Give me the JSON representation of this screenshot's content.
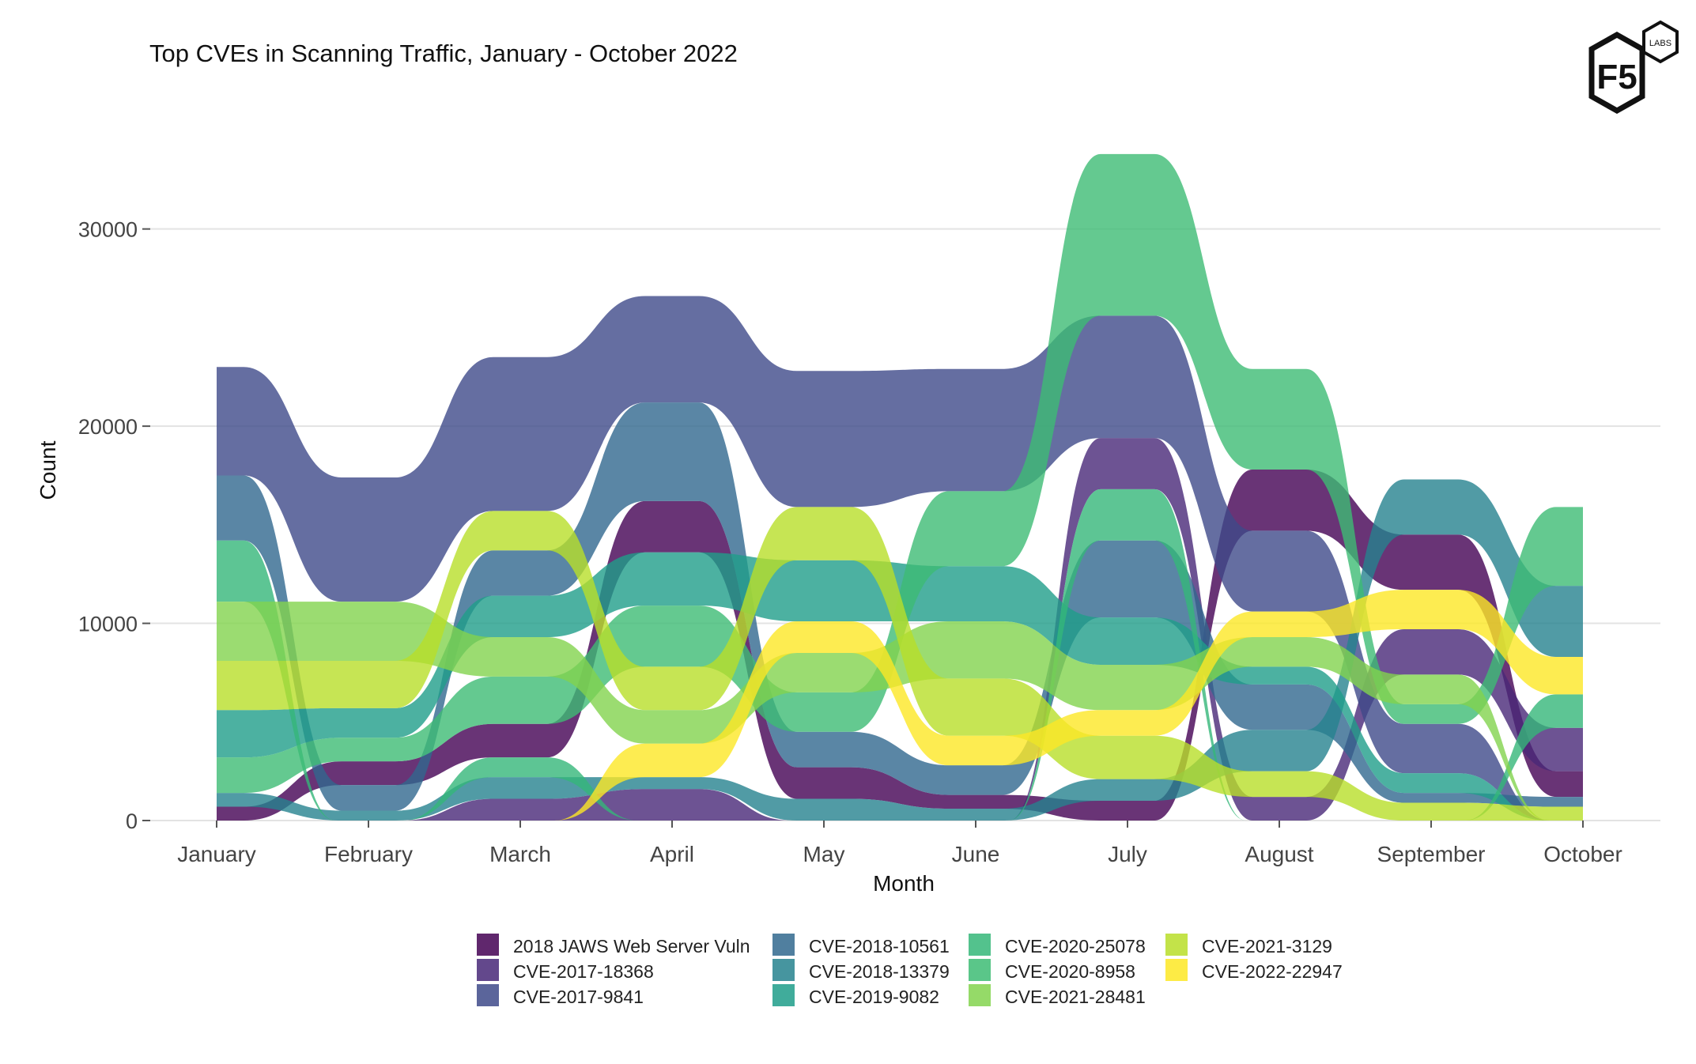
{
  "logo": {
    "mark": "F5",
    "badge": "LABS"
  },
  "chart_data": {
    "type": "bump-ribbon",
    "title": "Top CVEs in Scanning Traffic, January - October 2022",
    "xlabel": "Month",
    "ylabel": "Count",
    "categories": [
      "January",
      "February",
      "March",
      "April",
      "May",
      "June",
      "July",
      "August",
      "September",
      "October"
    ],
    "ylim": [
      0,
      36000
    ],
    "yticks": [
      0,
      10000,
      20000,
      30000
    ],
    "ytick_labels": [
      "0",
      "10000",
      "20000",
      "30000"
    ],
    "grid": true,
    "legend_position": "bottom",
    "series": [
      {
        "name": "2018 JAWS Web Server Vuln",
        "color": "#440154",
        "values": [
          700,
          1200,
          1700,
          2600,
          1600,
          700,
          1000,
          3100,
          2800,
          1300
        ],
        "ranks": [
          1,
          3,
          4,
          9,
          3,
          2,
          1,
          10,
          8,
          3
        ]
      },
      {
        "name": "CVE-2017-18368",
        "color": "#482878",
        "values": [
          0,
          0,
          1100,
          1600,
          0,
          0,
          2600,
          1200,
          2300,
          2200
        ],
        "ranks": [
          0,
          0,
          1,
          2,
          0,
          0,
          9,
          1,
          7,
          6
        ]
      },
      {
        "name": "CVE-2017-9841",
        "color": "#3E4A89",
        "values": [
          5500,
          6300,
          7800,
          5400,
          6900,
          6200,
          6200,
          4100,
          2500,
          0
        ],
        "ranks": [
          10,
          10,
          10,
          10,
          10,
          10,
          9,
          8,
          5,
          0
        ]
      },
      {
        "name": "CVE-2018-10561",
        "color": "#31688E",
        "values": [
          3300,
          1300,
          2300,
          5000,
          1800,
          1500,
          3900,
          2300,
          500,
          500
        ],
        "ranks": [
          9,
          2,
          8,
          9,
          4,
          4,
          8,
          4,
          3,
          2
        ]
      },
      {
        "name": "CVE-2018-13379",
        "color": "#26828E",
        "values": [
          700,
          500,
          1100,
          600,
          1100,
          600,
          1100,
          2100,
          2800,
          3600
        ],
        "ranks": [
          2,
          1,
          2,
          2,
          2,
          1,
          2,
          3,
          9,
          9
        ]
      },
      {
        "name": "CVE-2019-9082",
        "color": "#1F9E89",
        "values": [
          2400,
          1500,
          2100,
          2700,
          3100,
          2800,
          2400,
          900,
          1000,
          0
        ],
        "ranks": [
          5,
          5,
          7,
          8,
          8,
          8,
          6,
          5,
          4,
          0
        ]
      },
      {
        "name": "CVE-2020-25078",
        "color": "#35B779",
        "values": [
          3100,
          0,
          1000,
          0,
          0,
          0,
          2600,
          0,
          0,
          1700
        ],
        "ranks": [
          8,
          0,
          3,
          0,
          0,
          0,
          8,
          0,
          0,
          7
        ]
      },
      {
        "name": "CVE-2020-8958",
        "color": "#3DBC74",
        "values": [
          1800,
          1200,
          2400,
          3100,
          2000,
          3800,
          8200,
          5100,
          1000,
          4000
        ],
        "ranks": [
          3,
          4,
          5,
          7,
          5,
          9,
          10,
          10,
          5,
          10
        ]
      },
      {
        "name": "CVE-2021-28481",
        "color": "#82D34D",
        "values": [
          3000,
          3000,
          2000,
          1700,
          2000,
          2900,
          2300,
          1500,
          1500,
          0
        ],
        "ranks": [
          7,
          9,
          6,
          5,
          6,
          7,
          5,
          6,
          6,
          0
        ]
      },
      {
        "name": "CVE-2021-3129",
        "color": "#B8DE29",
        "values": [
          2500,
          2400,
          2000,
          2200,
          2700,
          2900,
          2200,
          1300,
          900,
          700
        ],
        "ranks": [
          6,
          8,
          9,
          6,
          9,
          6,
          3,
          2,
          2,
          1
        ]
      },
      {
        "name": "CVE-2022-22947",
        "color": "#FDE725",
        "values": [
          0,
          0,
          0,
          1700,
          1600,
          1500,
          1300,
          1300,
          2000,
          1900
        ],
        "ranks": [
          0,
          0,
          0,
          4,
          7,
          5,
          4,
          7,
          7,
          8
        ]
      }
    ]
  }
}
